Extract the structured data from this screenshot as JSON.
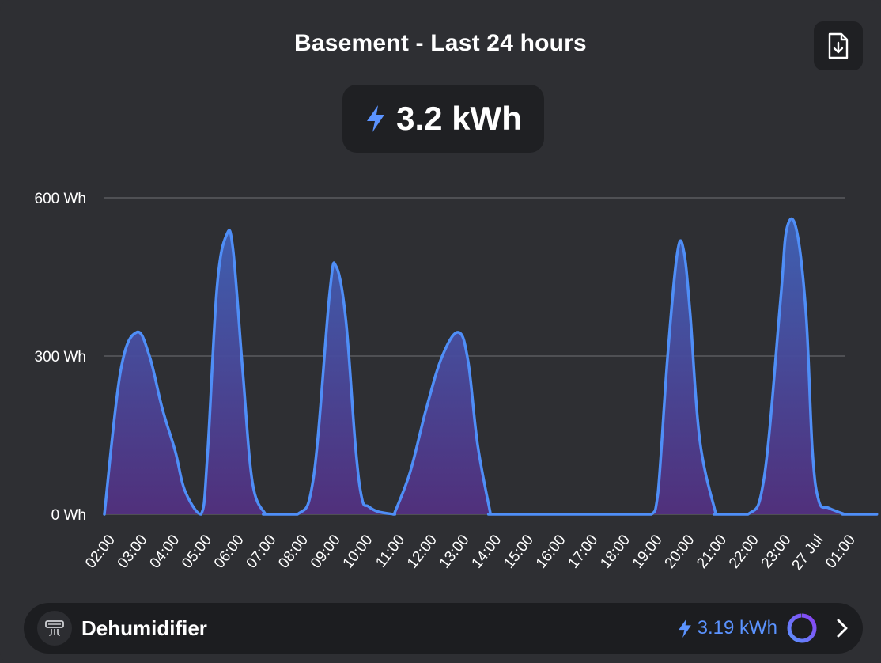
{
  "header": {
    "title": "Basement - Last 24 hours",
    "export_icon": "file-download-icon"
  },
  "summary": {
    "total": "3.2 kWh",
    "icon": "lightning-bolt-icon"
  },
  "device": {
    "name": "Dehumidifier",
    "energy": "3.19 kWh",
    "icon": "dehumidifier-icon",
    "progress_fraction": 0.99
  },
  "colors": {
    "background": "#2e2f33",
    "line": "#4f8ef7",
    "fill_top": "#3f63b8",
    "fill_bottom": "#52307f",
    "accent_blue": "#5b93ff",
    "ring_start": "#5b93ff",
    "ring_end": "#8a3ff2"
  },
  "chart_data": {
    "type": "area",
    "y_unit": "Wh",
    "ylim": [
      0,
      600
    ],
    "yticks": [
      0,
      300,
      600
    ],
    "ytick_labels": [
      "0 Wh",
      "300 Wh",
      "600 Wh"
    ],
    "xtick_labels": [
      "02:00",
      "03:00",
      "04:00",
      "05:00",
      "06:00",
      "07:00",
      "08:00",
      "09:00",
      "10:00",
      "11:00",
      "12:00",
      "13:00",
      "14:00",
      "15:00",
      "16:00",
      "17:00",
      "18:00",
      "19:00",
      "20:00",
      "21:00",
      "22:00",
      "23:00",
      "27 Jul",
      "01:00"
    ],
    "grid": true,
    "x_hours": [
      0,
      0.5,
      1,
      1.4,
      1.8,
      2.2,
      2.5,
      3,
      3.2,
      3.5,
      3.8,
      4,
      4.3,
      4.6,
      5,
      5,
      6,
      6.5,
      7,
      7.2,
      7.5,
      7.8,
      8,
      8.2,
      8.5,
      9,
      9,
      9.5,
      10,
      10.5,
      11,
      11.3,
      11.6,
      12,
      12,
      13,
      14,
      15,
      16,
      16.5,
      17,
      17.2,
      17.5,
      17.8,
      18,
      18.2,
      18.5,
      19,
      19,
      20,
      20.5,
      21,
      21.2,
      21.5,
      21.8,
      22,
      22.2,
      22.5,
      23,
      23,
      24
    ],
    "values": [
      0,
      270,
      345,
      300,
      200,
      120,
      45,
      0,
      110,
      430,
      530,
      500,
      270,
      60,
      0,
      0,
      0,
      70,
      420,
      470,
      370,
      130,
      30,
      15,
      5,
      0,
      0,
      80,
      200,
      300,
      345,
      290,
      130,
      0,
      0,
      0,
      0,
      0,
      0,
      0,
      0,
      40,
      300,
      495,
      500,
      380,
      140,
      0,
      0,
      0,
      70,
      400,
      540,
      540,
      380,
      120,
      25,
      12,
      0,
      0,
      0
    ]
  }
}
